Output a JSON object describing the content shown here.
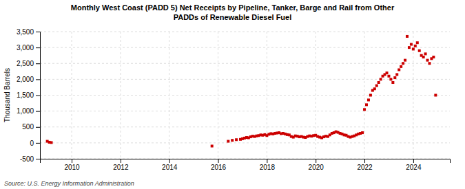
{
  "chart_data": {
    "type": "scatter",
    "title": "Monthly West Coast (PADD 5) Net Receipts by Pipeline, Tanker, Barge and Rail from Other\nPADDs of Renewable Diesel Fuel",
    "ylabel": "Thousand Barrels",
    "source": "Source: U.S. Energy Information Administration",
    "color": "#cc0000",
    "marker": "square",
    "grid": true,
    "xlim": [
      2008.7,
      2025.5
    ],
    "ylim": [
      -500,
      3500
    ],
    "xticks": [
      2010,
      2012,
      2014,
      2016,
      2018,
      2020,
      2022,
      2024
    ],
    "yticks": [
      -500,
      0,
      500,
      {
        "value": 1000,
        "label": "1,000"
      },
      {
        "value": 1500,
        "label": "1,500"
      },
      {
        "value": 2000,
        "label": "2,000"
      },
      {
        "value": 2500,
        "label": "2,500"
      },
      {
        "value": 3000,
        "label": "3,000"
      },
      {
        "value": 3500,
        "label": "3,500"
      }
    ],
    "x": [
      2009.0,
      2009.083,
      2009.167,
      2015.75,
      2016.417,
      2016.583,
      2016.75,
      2016.917,
      2017.0,
      2017.083,
      2017.167,
      2017.25,
      2017.333,
      2017.417,
      2017.5,
      2017.583,
      2017.667,
      2017.75,
      2017.833,
      2017.917,
      2018.0,
      2018.083,
      2018.167,
      2018.25,
      2018.333,
      2018.417,
      2018.5,
      2018.583,
      2018.667,
      2018.75,
      2018.833,
      2018.917,
      2019.0,
      2019.083,
      2019.167,
      2019.25,
      2019.333,
      2019.417,
      2019.5,
      2019.583,
      2019.667,
      2019.75,
      2019.833,
      2019.917,
      2020.0,
      2020.083,
      2020.167,
      2020.25,
      2020.333,
      2020.417,
      2020.5,
      2020.583,
      2020.667,
      2020.75,
      2020.833,
      2020.917,
      2021.0,
      2021.083,
      2021.167,
      2021.25,
      2021.333,
      2021.417,
      2021.5,
      2021.583,
      2021.667,
      2021.75,
      2021.833,
      2021.917,
      2022.0,
      2022.083,
      2022.167,
      2022.25,
      2022.333,
      2022.417,
      2022.5,
      2022.583,
      2022.667,
      2022.75,
      2022.833,
      2022.917,
      2023.0,
      2023.083,
      2023.167,
      2023.25,
      2023.333,
      2023.417,
      2023.5,
      2023.583,
      2023.667,
      2023.75,
      2023.833,
      2023.917,
      2024.0,
      2024.083,
      2024.167,
      2024.25,
      2024.333,
      2024.417,
      2024.5,
      2024.583,
      2024.667,
      2024.75,
      2024.833,
      2024.917
    ],
    "values": [
      50,
      20,
      10,
      -100,
      50,
      80,
      100,
      110,
      130,
      150,
      170,
      160,
      190,
      210,
      200,
      220,
      230,
      250,
      240,
      260,
      230,
      270,
      290,
      280,
      300,
      310,
      320,
      290,
      300,
      280,
      260,
      250,
      200,
      180,
      220,
      210,
      190,
      200,
      180,
      170,
      200,
      220,
      210,
      230,
      240,
      200,
      180,
      160,
      190,
      210,
      200,
      250,
      300,
      320,
      350,
      330,
      300,
      280,
      250,
      240,
      200,
      180,
      200,
      220,
      250,
      280,
      300,
      320,
      1050,
      1200,
      1350,
      1500,
      1650,
      1700,
      1800,
      1900,
      2000,
      2100,
      2150,
      2200,
      2100,
      2000,
      1900,
      2050,
      2150,
      2300,
      2400,
      2500,
      2600,
      3350,
      3000,
      3100,
      2950,
      3050,
      3150,
      2900,
      2750,
      2700,
      2800,
      2600,
      2500,
      2650,
      2700,
      1500
    ]
  }
}
